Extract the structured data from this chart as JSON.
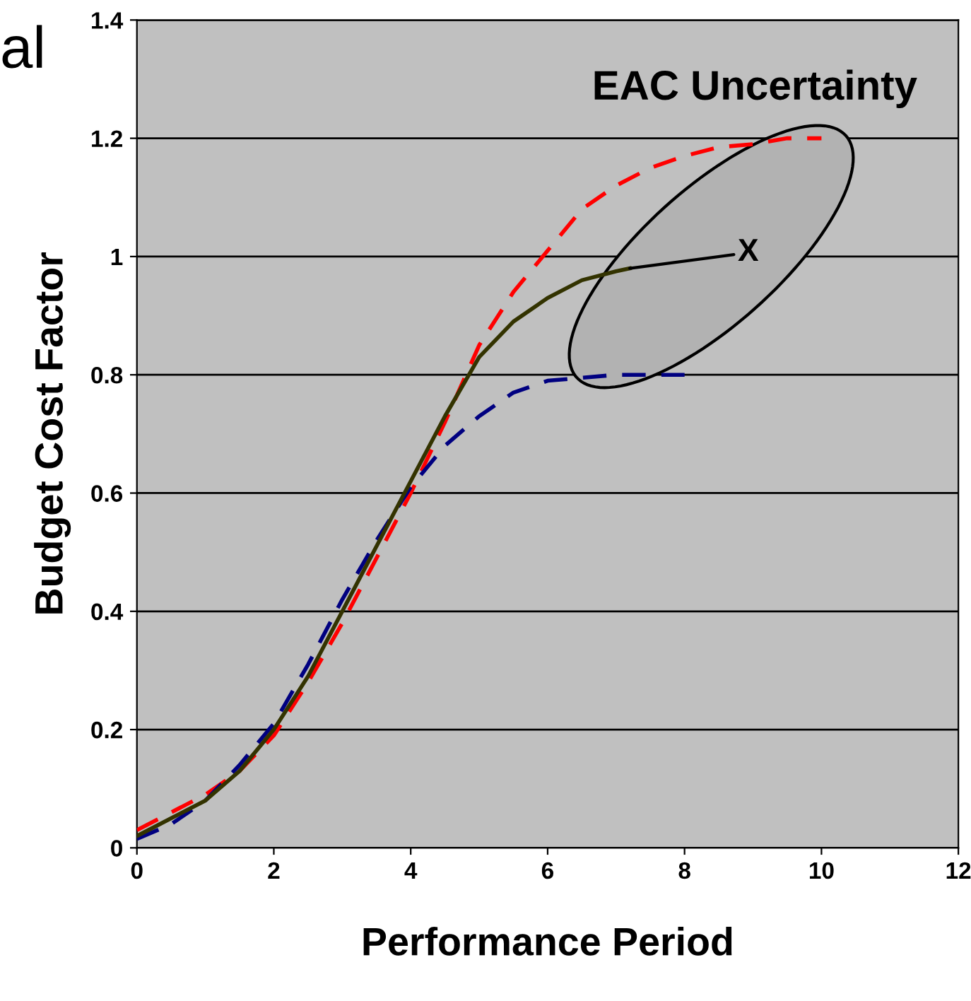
{
  "chart_data": {
    "type": "line",
    "title": "EAC Uncertainty",
    "xlabel": "Performance Period",
    "ylabel": "Budget Cost Factor",
    "annotations": [
      "al",
      {
        "text": "X",
        "x": 7.2,
        "y": 0.98
      }
    ],
    "xlim": [
      0,
      12
    ],
    "xticks": [
      0,
      2,
      4,
      6,
      8,
      10,
      12
    ],
    "ylim": [
      0,
      1.4
    ],
    "yticks": [
      0,
      0.2,
      0.4,
      0.6,
      0.8,
      1,
      1.2,
      1.4
    ],
    "grid": "y",
    "legend": false,
    "series": [
      {
        "color": "#ff0000",
        "line_style": "dashed",
        "x": [
          0,
          0.5,
          1,
          1.5,
          2,
          2.5,
          3,
          3.5,
          4,
          4.5,
          5,
          5.5,
          6,
          6.5,
          7,
          7.5,
          8,
          8.5,
          9,
          9.5,
          10
        ],
        "values": [
          0.03,
          0.06,
          0.09,
          0.13,
          0.19,
          0.28,
          0.38,
          0.49,
          0.6,
          0.72,
          0.85,
          0.94,
          1.01,
          1.08,
          1.12,
          1.15,
          1.17,
          1.185,
          1.19,
          1.2,
          1.2
        ]
      },
      {
        "color": "#000080",
        "line_style": "dashed",
        "x": [
          0,
          0.5,
          1,
          1.5,
          2,
          2.5,
          3,
          3.5,
          4,
          4.5,
          5,
          5.5,
          6,
          6.5,
          7,
          8
        ],
        "values": [
          0.015,
          0.04,
          0.08,
          0.14,
          0.21,
          0.31,
          0.42,
          0.52,
          0.61,
          0.68,
          0.73,
          0.77,
          0.79,
          0.795,
          0.8,
          0.8
        ]
      },
      {
        "color": "#333300",
        "line_style": "solid",
        "x": [
          0,
          0.5,
          1,
          1.5,
          2,
          2.5,
          3,
          3.5,
          4,
          4.5,
          5,
          5.5,
          6,
          6.5,
          7,
          7.2
        ],
        "values": [
          0.02,
          0.05,
          0.08,
          0.13,
          0.2,
          0.29,
          0.4,
          0.51,
          0.62,
          0.73,
          0.83,
          0.89,
          0.93,
          0.96,
          0.975,
          0.98
        ]
      }
    ]
  }
}
